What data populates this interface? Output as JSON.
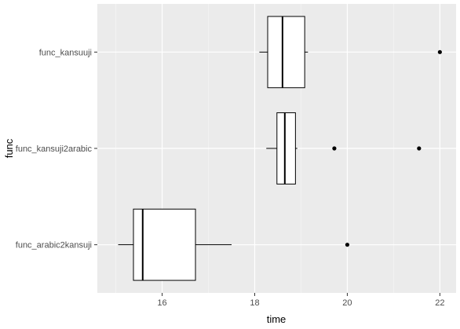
{
  "chart_data": {
    "type": "boxplot",
    "orientation": "horizontal",
    "xlabel": "time",
    "ylabel": "func",
    "xlim": [
      14.6,
      22.35
    ],
    "x_ticks": [
      16,
      18,
      20,
      22
    ],
    "x_minor_ticks": [
      15,
      17,
      19,
      21
    ],
    "categories": [
      "func_kansuuji",
      "func_kansuji2arabic",
      "func_arabic2kansuji"
    ],
    "boxes": [
      {
        "category": "func_kansuuji",
        "whisker_low": 18.1,
        "q1": 18.28,
        "median": 18.6,
        "q3": 19.08,
        "whisker_high": 19.15,
        "outliers": [
          22.0
        ]
      },
      {
        "category": "func_kansuji2arabic",
        "whisker_low": 18.25,
        "q1": 18.48,
        "median": 18.65,
        "q3": 18.88,
        "whisker_high": 18.92,
        "outliers": [
          19.72,
          21.55
        ]
      },
      {
        "category": "func_arabic2kansuji",
        "whisker_low": 15.05,
        "q1": 15.38,
        "median": 15.58,
        "q3": 16.72,
        "whisker_high": 17.5,
        "outliers": [
          20.0
        ]
      }
    ],
    "grid": true,
    "legend": "none",
    "colors": {
      "panel": "#ebebeb",
      "grid_major": "#ffffff",
      "box_fill": "#ffffff",
      "box_line": "#000000",
      "outlier": "#000000"
    }
  }
}
